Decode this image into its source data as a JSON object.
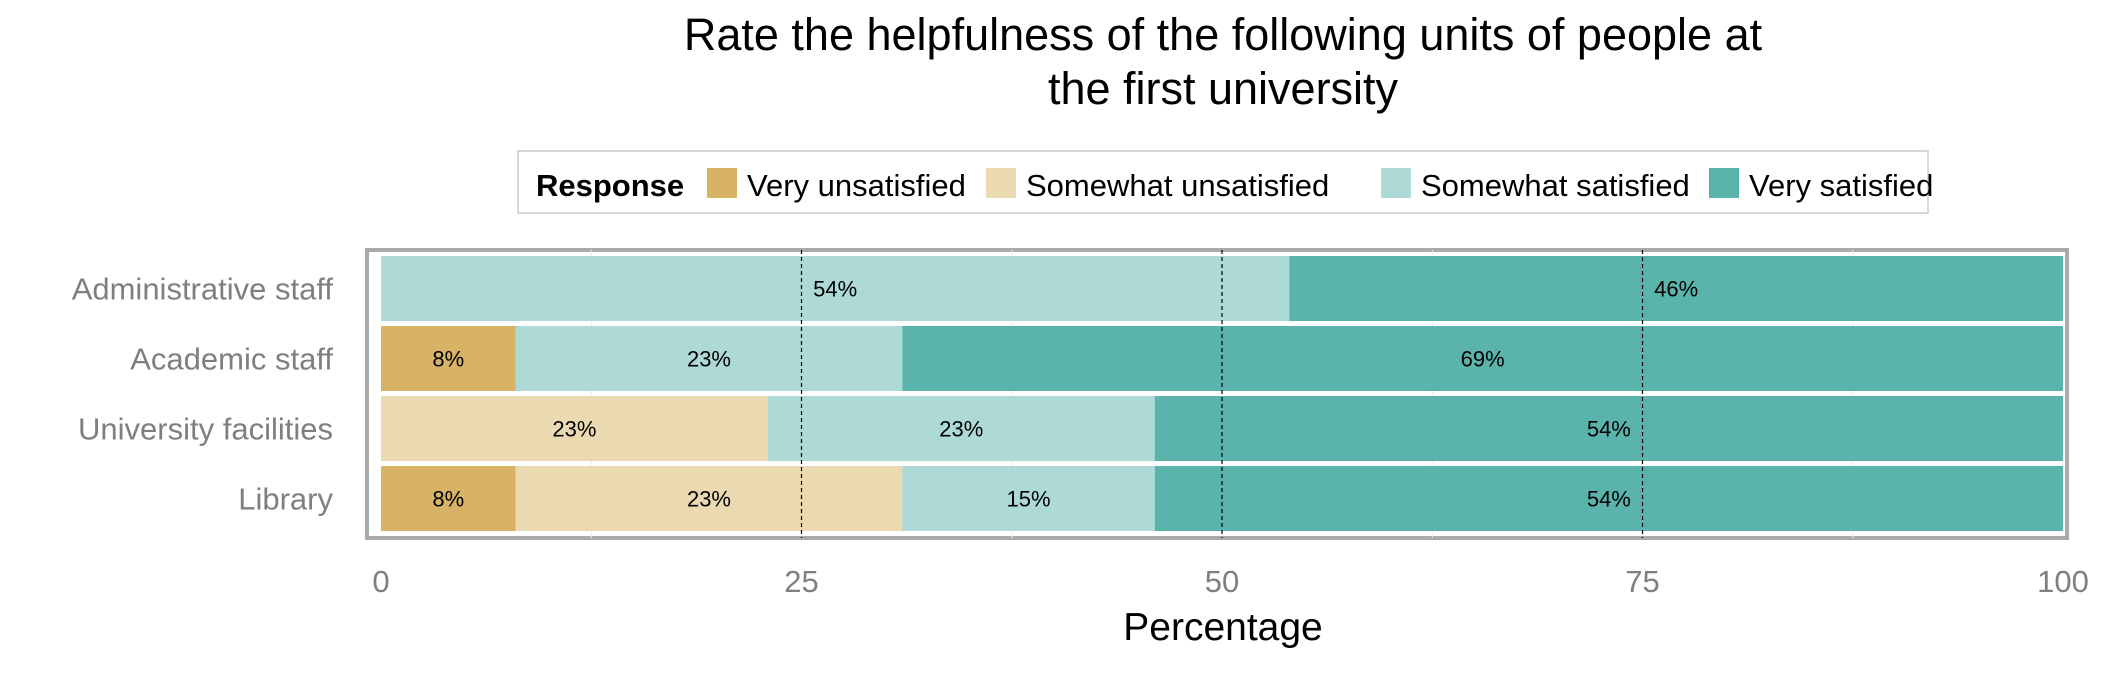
{
  "chart_data": {
    "type": "bar",
    "orientation": "horizontal",
    "stacked": true,
    "title_lines": [
      "Rate the helpfulness of the following units of people at",
      "the first university"
    ],
    "xlabel": "Percentage",
    "ylabel": "",
    "xlim": [
      0,
      100
    ],
    "x_ticks": [
      0,
      25,
      50,
      75,
      100
    ],
    "grid": "vertical",
    "legend": {
      "title": "Response",
      "position": "top"
    },
    "categories": [
      "Administrative staff",
      "Academic staff",
      "University facilities",
      "Library"
    ],
    "series": [
      {
        "name": "Very unsatisfied",
        "color": "#D8B365",
        "values": [
          0,
          8,
          0,
          8
        ],
        "labels": [
          "",
          "8%",
          "",
          "8%"
        ]
      },
      {
        "name": "Somewhat unsatisfied",
        "color": "#EBD9B2",
        "values": [
          0,
          0,
          23,
          23
        ],
        "labels": [
          "",
          "",
          "23%",
          "23%"
        ]
      },
      {
        "name": "Somewhat satisfied",
        "color": "#ADD9D6",
        "values": [
          54,
          23,
          23,
          15
        ],
        "labels": [
          "54%",
          "23%",
          "23%",
          "15%"
        ]
      },
      {
        "name": "Very satisfied",
        "color": "#5AB4AC",
        "values": [
          46,
          69,
          54,
          54
        ],
        "labels": [
          "46%",
          "69%",
          "54%",
          "54%"
        ]
      }
    ]
  }
}
